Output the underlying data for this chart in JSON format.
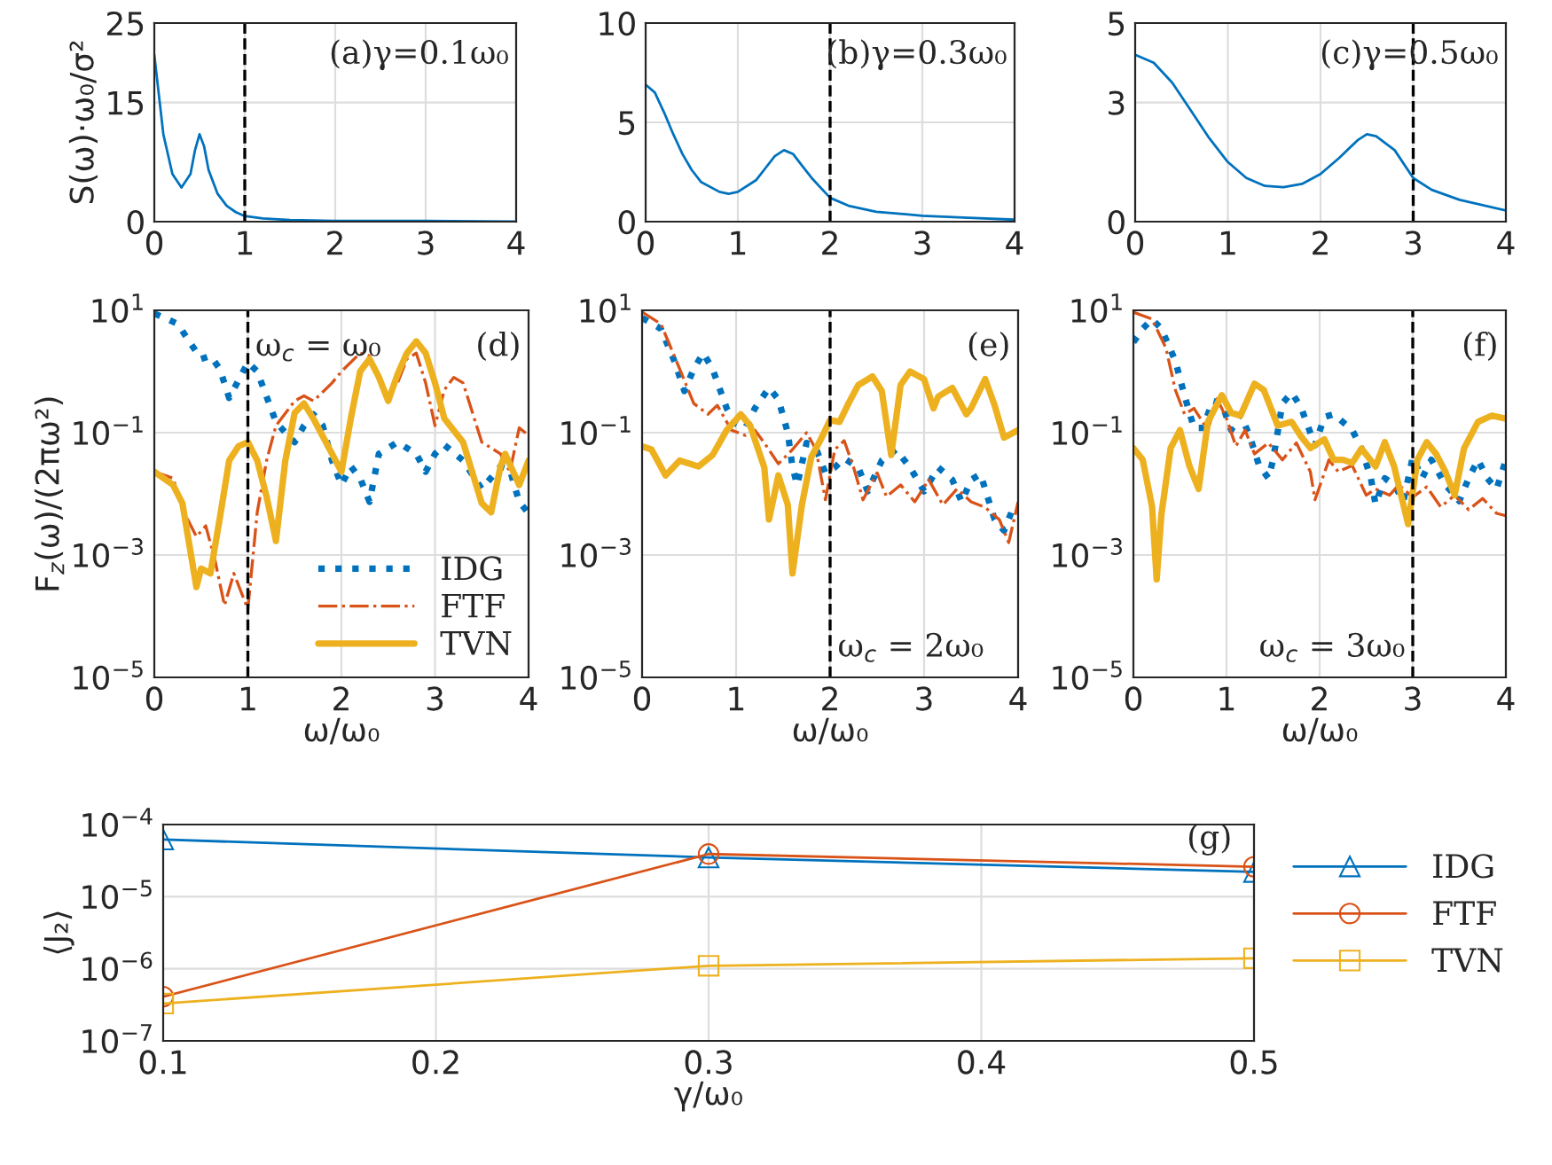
{
  "chart_data": [
    {
      "type": "line",
      "ylabel": "S(ω)·ω₀/σ²",
      "xlim": [
        0,
        4
      ],
      "xticks": [
        0,
        1,
        2,
        3,
        4
      ],
      "ylim": [
        0,
        25
      ],
      "yticks": [
        0,
        15,
        25
      ],
      "grid": true,
      "series": [
        {
          "color": "#0072bd",
          "x": [
            0,
            0.05,
            0.1,
            0.2,
            0.3,
            0.4,
            0.45,
            0.5,
            0.55,
            0.6,
            0.7,
            0.8,
            0.9,
            1.0,
            1.2,
            1.5,
            2,
            3,
            4
          ],
          "values": [
            21,
            16,
            11,
            6,
            4.3,
            6,
            9,
            11,
            9.5,
            6.5,
            3.5,
            2,
            1.2,
            0.7,
            0.4,
            0.2,
            0.1,
            0.1,
            0.0
          ]
        }
      ],
      "ref_lines": [
        {
          "axis": "x",
          "value": 1,
          "color": "#000000",
          "line_style": "dashed"
        }
      ],
      "annotations": [
        "(a)γ=0.1ω₀"
      ]
    },
    {
      "type": "line",
      "xlim": [
        0,
        4
      ],
      "xticks": [
        0,
        1,
        2,
        3,
        4
      ],
      "ylim": [
        0,
        10
      ],
      "yticks": [
        0,
        5,
        10
      ],
      "grid": true,
      "series": [
        {
          "color": "#0072bd",
          "x": [
            0,
            0.1,
            0.2,
            0.3,
            0.4,
            0.5,
            0.6,
            0.8,
            0.9,
            1.0,
            1.2,
            1.3,
            1.4,
            1.5,
            1.6,
            1.7,
            1.8,
            2.0,
            2.2,
            2.5,
            3,
            3.5,
            4
          ],
          "values": [
            6.9,
            6.5,
            5.5,
            4.4,
            3.4,
            2.6,
            2.0,
            1.5,
            1.4,
            1.5,
            2.1,
            2.7,
            3.3,
            3.6,
            3.4,
            2.8,
            2.2,
            1.2,
            0.8,
            0.5,
            0.3,
            0.2,
            0.1
          ]
        }
      ],
      "ref_lines": [
        {
          "axis": "x",
          "value": 2,
          "color": "#000000",
          "line_style": "dashed"
        }
      ],
      "annotations": [
        "(b)γ=0.3ω₀"
      ]
    },
    {
      "type": "line",
      "xlim": [
        0,
        4
      ],
      "xticks": [
        0,
        1,
        2,
        3,
        4
      ],
      "ylim": [
        0,
        5
      ],
      "yticks": [
        0,
        3,
        5
      ],
      "grid": true,
      "series": [
        {
          "color": "#0072bd",
          "x": [
            0,
            0.2,
            0.4,
            0.6,
            0.8,
            1.0,
            1.2,
            1.4,
            1.6,
            1.8,
            2.0,
            2.2,
            2.4,
            2.5,
            2.6,
            2.8,
            3.0,
            3.2,
            3.5,
            4
          ],
          "values": [
            4.2,
            4.0,
            3.5,
            2.8,
            2.1,
            1.5,
            1.1,
            0.9,
            0.87,
            0.95,
            1.2,
            1.6,
            2.05,
            2.2,
            2.15,
            1.8,
            1.1,
            0.8,
            0.55,
            0.28
          ]
        }
      ],
      "ref_lines": [
        {
          "axis": "x",
          "value": 3,
          "color": "#000000",
          "line_style": "dashed"
        }
      ],
      "annotations": [
        "(c)γ=0.5ω₀"
      ]
    },
    {
      "type": "line",
      "ylabel": "F$_{z}$(ω)/(2πω²)",
      "xlabel": "ω/ω₀",
      "log": "y",
      "xlim": [
        0,
        4
      ],
      "xticks": [
        0,
        1,
        2,
        3,
        4
      ],
      "ylim": [
        1e-05,
        10
      ],
      "yticks": [
        {
          "value": 1e-05,
          "label": "10$^{−5}$"
        },
        {
          "value": 0.001,
          "label": "10$^{−3}$"
        },
        {
          "value": 0.1,
          "label": "10$^{−1}$"
        },
        {
          "value": 10,
          "label": "10$^{1}$"
        }
      ],
      "grid": true,
      "legend": "bottom right",
      "series": [
        {
          "name": "IDG",
          "color": "#0072bd",
          "line_style": "dotted",
          "x": [
            0,
            0.25,
            0.4,
            0.5,
            0.6,
            0.7,
            0.8,
            0.9,
            1.0,
            1.1,
            1.3,
            1.4,
            1.5,
            1.6,
            1.7,
            1.8,
            1.9,
            2.0,
            2.1,
            2.2,
            2.3,
            2.4,
            2.6,
            2.8,
            2.9,
            3.0,
            3.1,
            3.3,
            3.5,
            3.7,
            3.8,
            3.9,
            4.0
          ],
          "values": [
            8.9,
            6,
            2.7,
            1.6,
            1.8,
            1.1,
            0.37,
            0.72,
            1.4,
            1.0,
            0.15,
            0.1,
            0.07,
            0.13,
            0.2,
            0.13,
            0.035,
            0.014,
            0.028,
            0.018,
            0.0074,
            0.045,
            0.07,
            0.045,
            0.023,
            0.045,
            0.063,
            0.035,
            0.012,
            0.028,
            0.025,
            0.0074,
            0.0048
          ]
        },
        {
          "name": "FTF",
          "color": "#d95319",
          "line_style": "dashdot",
          "x": [
            0,
            0.2,
            0.35,
            0.45,
            0.55,
            0.65,
            0.75,
            0.85,
            1.0,
            1.1,
            1.2,
            1.3,
            1.5,
            1.6,
            1.7,
            1.8,
            1.9,
            2.0,
            2.2,
            2.3,
            2.5,
            2.6,
            2.7,
            2.8,
            2.9,
            3.0,
            3.1,
            3.2,
            3.3,
            3.5,
            3.7,
            3.8,
            3.9,
            4.0
          ],
          "values": [
            0.023,
            0.018,
            0.004,
            0.002,
            0.003,
            0.0008,
            0.00015,
            0.0005,
            0.00013,
            0.005,
            0.035,
            0.13,
            0.33,
            0.4,
            0.33,
            0.46,
            0.65,
            1.0,
            2.0,
            1.8,
            0.4,
            0.65,
            1.6,
            2.0,
            0.65,
            0.13,
            0.5,
            0.8,
            0.65,
            0.07,
            0.045,
            0.023,
            0.12,
            0.09
          ]
        },
        {
          "name": "TVN",
          "color": "#edb120",
          "line_style": "solid",
          "x": [
            0,
            0.2,
            0.3,
            0.45,
            0.5,
            0.6,
            0.7,
            0.8,
            0.9,
            1.0,
            1.1,
            1.2,
            1.3,
            1.4,
            1.5,
            1.6,
            1.7,
            1.9,
            2.0,
            2.1,
            2.2,
            2.3,
            2.4,
            2.5,
            2.6,
            2.7,
            2.8,
            2.9,
            3.0,
            3.1,
            3.3,
            3.5,
            3.6,
            3.7,
            3.75,
            3.9,
            4.0
          ],
          "values": [
            0.023,
            0.014,
            0.007,
            0.0003,
            0.0006,
            0.0005,
            0.004,
            0.035,
            0.06,
            0.07,
            0.035,
            0.009,
            0.0017,
            0.035,
            0.21,
            0.3,
            0.17,
            0.045,
            0.023,
            0.17,
            1.0,
            1.6,
            0.81,
            0.33,
            0.9,
            2.0,
            3.1,
            2.0,
            0.65,
            0.17,
            0.07,
            0.007,
            0.005,
            0.028,
            0.045,
            0.014,
            0.035
          ]
        }
      ],
      "ref_lines": [
        {
          "axis": "x",
          "value": 1,
          "color": "#000000",
          "line_style": "dashed"
        }
      ],
      "annotations": [
        "ω$_{c}$ = ω₀",
        "(d)"
      ]
    },
    {
      "type": "line",
      "xlabel": "ω/ω₀",
      "log": "y",
      "xlim": [
        0,
        4
      ],
      "xticks": [
        0,
        1,
        2,
        3,
        4
      ],
      "ylim": [
        1e-05,
        10
      ],
      "yticks": [
        {
          "value": 1e-05,
          "label": "10$^{−5}$"
        },
        {
          "value": 0.001,
          "label": "10$^{−3}$"
        },
        {
          "value": 0.1,
          "label": "10$^{−1}$"
        },
        {
          "value": 10,
          "label": "10$^{1}$"
        }
      ],
      "grid": true,
      "series": [
        {
          "color": "#0072bd",
          "line_style": "dotted",
          "x": [
            0,
            0.2,
            0.35,
            0.45,
            0.55,
            0.65,
            0.75,
            0.9,
            1.0,
            1.1,
            1.2,
            1.35,
            1.45,
            1.55,
            1.6,
            1.65,
            1.75,
            1.85,
            1.95,
            2.05,
            2.15,
            2.3,
            2.4,
            2.55,
            2.7,
            2.85,
            3.0,
            3.15,
            3.3,
            3.4,
            3.5,
            3.6,
            3.75,
            3.85,
            3.95,
            4.0
          ],
          "values": [
            7.5,
            5,
            1.4,
            0.48,
            1.1,
            2.0,
            1.1,
            0.25,
            0.14,
            0.12,
            0.25,
            0.54,
            0.35,
            0.1,
            0.027,
            0.014,
            0.068,
            0.055,
            0.022,
            0.027,
            0.038,
            0.027,
            0.011,
            0.035,
            0.053,
            0.027,
            0.011,
            0.027,
            0.017,
            0.0074,
            0.017,
            0.021,
            0.0038,
            0.0025,
            0.006,
            0.005
          ]
        },
        {
          "color": "#d95319",
          "line_style": "dashdot",
          "x": [
            0,
            0.2,
            0.4,
            0.55,
            0.7,
            0.8,
            0.95,
            1.1,
            1.2,
            1.3,
            1.45,
            1.6,
            1.75,
            1.85,
            1.95,
            2.05,
            2.15,
            2.25,
            2.35,
            2.5,
            2.6,
            2.75,
            2.9,
            3.05,
            3.2,
            3.35,
            3.5,
            3.65,
            3.8,
            3.9,
            4.0
          ],
          "values": [
            9.4,
            6,
            1.1,
            0.3,
            0.2,
            0.28,
            0.11,
            0.09,
            0.11,
            0.068,
            0.031,
            0.053,
            0.1,
            0.053,
            0.008,
            0.053,
            0.074,
            0.027,
            0.008,
            0.022,
            0.009,
            0.014,
            0.0074,
            0.017,
            0.0066,
            0.012,
            0.0074,
            0.006,
            0.0038,
            0.0016,
            0.0074
          ]
        },
        {
          "color": "#edb120",
          "line_style": "solid",
          "x": [
            0,
            0.1,
            0.25,
            0.4,
            0.6,
            0.75,
            0.9,
            1.05,
            1.15,
            1.3,
            1.35,
            1.45,
            1.55,
            1.6,
            1.7,
            1.8,
            1.9,
            2.0,
            2.1,
            2.2,
            2.3,
            2.45,
            2.55,
            2.65,
            2.75,
            2.85,
            3.0,
            3.1,
            3.15,
            3.3,
            3.45,
            3.5,
            3.65,
            3.75,
            3.85,
            3.95,
            4.0
          ],
          "values": [
            0.06,
            0.053,
            0.02,
            0.035,
            0.028,
            0.043,
            0.11,
            0.2,
            0.13,
            0.027,
            0.0038,
            0.02,
            0.0066,
            0.0005,
            0.0066,
            0.04,
            0.077,
            0.16,
            0.15,
            0.31,
            0.6,
            0.83,
            0.48,
            0.043,
            0.6,
            1.0,
            0.75,
            0.25,
            0.39,
            0.54,
            0.2,
            0.25,
            0.75,
            0.28,
            0.083,
            0.1,
            0.11
          ]
        }
      ],
      "ref_lines": [
        {
          "axis": "x",
          "value": 2,
          "color": "#000000",
          "line_style": "dashed"
        }
      ],
      "annotations": [
        "ω$_{c}$ = 2ω₀",
        "(e)"
      ]
    },
    {
      "type": "line",
      "xlabel": "ω/ω₀",
      "log": "y",
      "xlim": [
        0,
        4
      ],
      "xticks": [
        0,
        1,
        2,
        3,
        4
      ],
      "ylim": [
        1e-05,
        10
      ],
      "yticks": [
        {
          "value": 1e-05,
          "label": "10$^{−5}$"
        },
        {
          "value": 0.001,
          "label": "10$^{−3}$"
        },
        {
          "value": 0.1,
          "label": "10$^{−1}$"
        },
        {
          "value": 10,
          "label": "10$^{1}$"
        }
      ],
      "grid": true,
      "series": [
        {
          "color": "#0072bd",
          "line_style": "dotted",
          "x": [
            0,
            0.1,
            0.2,
            0.3,
            0.45,
            0.55,
            0.65,
            0.75,
            0.85,
            0.95,
            1.05,
            1.15,
            1.25,
            1.35,
            1.45,
            1.5,
            1.6,
            1.7,
            1.8,
            1.95,
            2.05,
            2.15,
            2.35,
            2.45,
            2.55,
            2.6,
            2.7,
            2.8,
            2.9,
            3.0,
            3.1,
            3.2,
            3.35,
            3.45,
            3.5,
            3.6,
            3.7,
            3.8,
            3.9,
            4.0
          ],
          "values": [
            3.0,
            5,
            7.2,
            5,
            1.5,
            0.4,
            0.12,
            0.12,
            0.33,
            0.3,
            0.11,
            0.2,
            0.087,
            0.029,
            0.018,
            0.036,
            0.3,
            0.45,
            0.26,
            0.062,
            0.18,
            0.2,
            0.11,
            0.055,
            0.018,
            0.0068,
            0.018,
            0.014,
            0.0076,
            0.04,
            0.018,
            0.036,
            0.014,
            0.0095,
            0.0076,
            0.018,
            0.036,
            0.018,
            0.012,
            0.036
          ]
        },
        {
          "color": "#d95319",
          "line_style": "dashdot",
          "x": [
            0,
            0.2,
            0.35,
            0.45,
            0.55,
            0.65,
            0.8,
            0.9,
            1.0,
            1.1,
            1.2,
            1.3,
            1.45,
            1.6,
            1.75,
            1.9,
            1.95,
            2.1,
            2.2,
            2.35,
            2.5,
            2.6,
            2.75,
            2.85,
            3.0,
            3.15,
            3.3,
            3.45,
            3.6,
            3.75,
            3.9,
            4.0
          ],
          "values": [
            9.3,
            7.2,
            2.4,
            0.5,
            0.2,
            0.25,
            0.11,
            0.36,
            0.17,
            0.06,
            0.11,
            0.045,
            0.068,
            0.036,
            0.068,
            0.023,
            0.008,
            0.036,
            0.023,
            0.029,
            0.0095,
            0.012,
            0.0095,
            0.014,
            0.0088,
            0.013,
            0.0061,
            0.0095,
            0.0055,
            0.0084,
            0.0048,
            0.0044
          ]
        },
        {
          "color": "#edb120",
          "line_style": "solid",
          "x": [
            0,
            0.1,
            0.2,
            0.25,
            0.3,
            0.4,
            0.5,
            0.6,
            0.7,
            0.8,
            0.95,
            1.05,
            1.15,
            1.3,
            1.4,
            1.55,
            1.7,
            1.8,
            1.9,
            2.05,
            2.15,
            2.25,
            2.35,
            2.45,
            2.6,
            2.7,
            2.8,
            2.95,
            3.05,
            3.15,
            3.25,
            3.35,
            3.45,
            3.55,
            3.7,
            3.85,
            4.0
          ],
          "values": [
            0.056,
            0.036,
            0.0062,
            0.0004,
            0.0045,
            0.056,
            0.11,
            0.029,
            0.012,
            0.15,
            0.41,
            0.21,
            0.19,
            0.63,
            0.5,
            0.13,
            0.15,
            0.087,
            0.056,
            0.078,
            0.036,
            0.036,
            0.032,
            0.055,
            0.028,
            0.07,
            0.028,
            0.0032,
            0.036,
            0.07,
            0.045,
            0.023,
            0.0095,
            0.055,
            0.15,
            0.19,
            0.17
          ]
        }
      ],
      "ref_lines": [
        {
          "axis": "x",
          "value": 3,
          "color": "#000000",
          "line_style": "dashed"
        }
      ],
      "annotations": [
        "ω$_{c}$ = 3ω₀",
        "(f)"
      ]
    },
    {
      "type": "line",
      "xlabel": "γ/ω₀",
      "ylabel": "⟨J₂⟩",
      "log": "y",
      "xlim": [
        0.1,
        0.5
      ],
      "xticks": [
        0.1,
        0.2,
        0.3,
        0.4,
        0.5
      ],
      "ylim": [
        1e-07,
        0.0001
      ],
      "yticks": [
        {
          "value": 1e-07,
          "label": "10$^{−7}$"
        },
        {
          "value": 1e-06,
          "label": "10$^{−6}$"
        },
        {
          "value": 1e-05,
          "label": "10$^{−5}$"
        },
        {
          "value": 0.0001,
          "label": "10$^{−4}$"
        }
      ],
      "grid": true,
      "legend": "right",
      "series": [
        {
          "name": "IDG",
          "color": "#0072bd",
          "marker": "triangle",
          "x": [
            0.1,
            0.3,
            0.5
          ],
          "values": [
            6.2e-05,
            3.5e-05,
            2.2e-05
          ]
        },
        {
          "name": "FTF",
          "color": "#d95319",
          "marker": "circle",
          "x": [
            0.1,
            0.3,
            0.5
          ],
          "values": [
            4.1e-07,
            3.9e-05,
            2.6e-05
          ]
        },
        {
          "name": "TVN",
          "color": "#edb120",
          "marker": "square",
          "x": [
            0.1,
            0.3,
            0.5
          ],
          "values": [
            3.3e-07,
            1.1e-06,
            1.4e-06
          ]
        }
      ],
      "annotations": [
        "(g)"
      ]
    }
  ]
}
